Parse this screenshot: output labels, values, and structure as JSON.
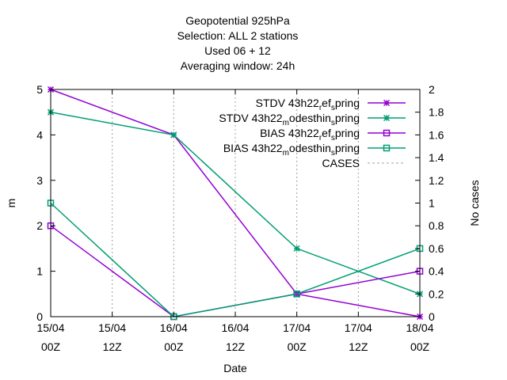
{
  "chart_data": {
    "type": "line",
    "title_lines": [
      "Geopotential 925hPa",
      "Selection: ALL       2 stations",
      "Used  06  + 12",
      "Averaging window: 24h"
    ],
    "xlabel": "Date",
    "ylabel": "m",
    "y2label": "No cases",
    "x_ticks": [
      {
        "line1": "15/04",
        "line2": "00Z"
      },
      {
        "line1": "15/04",
        "line2": "12Z"
      },
      {
        "line1": "16/04",
        "line2": "00Z"
      },
      {
        "line1": "16/04",
        "line2": "12Z"
      },
      {
        "line1": "17/04",
        "line2": "00Z"
      },
      {
        "line1": "17/04",
        "line2": "12Z"
      },
      {
        "line1": "18/04",
        "line2": "00Z"
      }
    ],
    "ylim": [
      0,
      5
    ],
    "y_ticks": [
      "0",
      "1",
      "2",
      "3",
      "4",
      "5"
    ],
    "y2lim": [
      0,
      2
    ],
    "y2_ticks": [
      "0",
      "0.2",
      "0.4",
      "0.6",
      "0.8",
      "1",
      "1.2",
      "1.4",
      "1.6",
      "1.8",
      "2"
    ],
    "grid": "vertical dashed at x ticks",
    "legend_position": "top-right",
    "series": [
      {
        "name": "STDV 43h22_ref_spring",
        "label_parts": [
          "STDV 43h22",
          "r",
          "ef",
          "s",
          "pring"
        ],
        "color": "#9400d3",
        "marker": "cross",
        "x_index": [
          0,
          2,
          4,
          6
        ],
        "values": [
          5,
          4,
          0.5,
          0
        ]
      },
      {
        "name": "STDV 43h22_modesthin_spring",
        "label_parts": [
          "STDV 43h22",
          "m",
          "odesthin",
          "s",
          "pring"
        ],
        "color": "#009e73",
        "marker": "cross",
        "x_index": [
          0,
          2,
          4,
          6
        ],
        "values": [
          4.5,
          4,
          1.5,
          0.5
        ]
      },
      {
        "name": "BIAS 43h22_ref_spring",
        "label_parts": [
          "BIAS 43h22",
          "r",
          "ef",
          "s",
          "pring"
        ],
        "color": "#9400d3",
        "marker": "square",
        "x_index": [
          0,
          2,
          4,
          6
        ],
        "values": [
          2,
          0,
          0.5,
          1
        ]
      },
      {
        "name": "BIAS 43h22_modesthin_spring",
        "label_parts": [
          "BIAS 43h22",
          "m",
          "odesthin",
          "s",
          "pring"
        ],
        "color": "#009e73",
        "marker": "square",
        "x_index": [
          0,
          2,
          4,
          6
        ],
        "values": [
          2.5,
          0,
          0.5,
          1.5
        ]
      },
      {
        "name": "CASES",
        "label_parts": [
          "CASES",
          "",
          "",
          "",
          ""
        ],
        "color": "#a0a0a0",
        "marker": "none",
        "dashed": true,
        "x_index": [],
        "values": []
      }
    ]
  }
}
